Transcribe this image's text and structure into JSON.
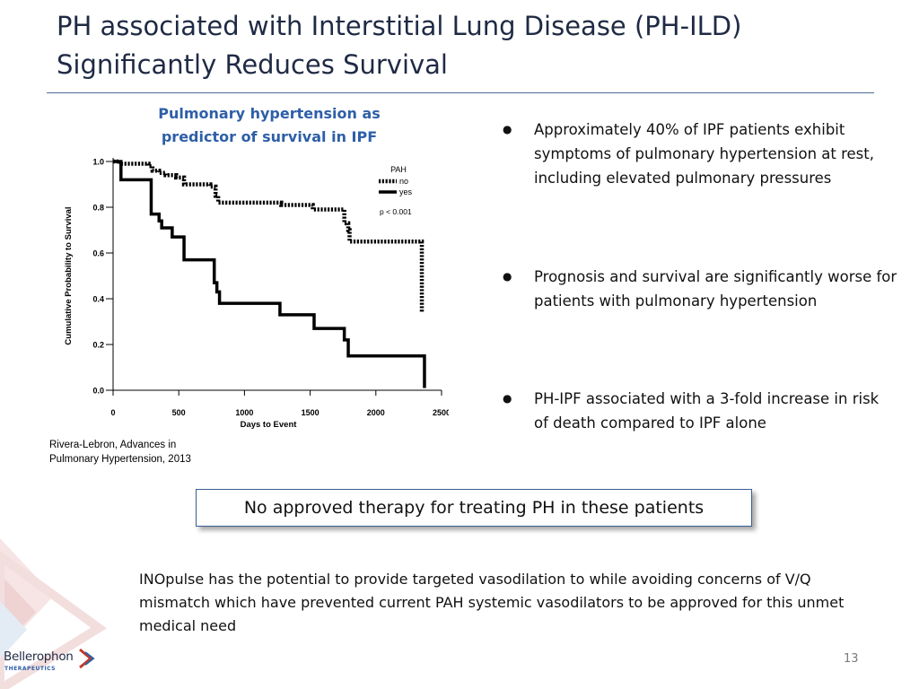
{
  "slide": {
    "title_line1": "PH associated with Interstitial Lung Disease (PH-ILD)",
    "title_line2": "Significantly Reduces Survival",
    "chart_heading_line1": "Pulmonary hypertension as",
    "chart_heading_line2": "predictor of survival in IPF",
    "citation_line1": "Rivera-Lebron, Advances in",
    "citation_line2": "Pulmonary Hypertension, 2013",
    "bullets": [
      "Approximately 40% of IPF patients exhibit symptoms of pulmonary hypertension at rest, including elevated pulmonary pressures",
      "Prognosis and survival are significantly worse for patients with pulmonary hypertension",
      "PH-IPF associated with a 3-fold increase in risk of death compared to IPF alone"
    ],
    "callout": "No approved therapy for treating PH in these patients",
    "bottom_text": "INOpulse has the potential to provide targeted vasodilation to while avoiding concerns of V/Q mismatch which have prevented current PAH systemic vasodilators to be approved for this unmet medical need",
    "page_number": "13"
  },
  "logo": {
    "name": "Bellerophon",
    "subtitle": "THERAPEUTICS"
  },
  "colors": {
    "title": "#1f2a44",
    "chart_heading": "#2e5fa8",
    "rule": "#4e6a92",
    "logo_red": "#c0392b",
    "logo_blue": "#2e5fa8"
  },
  "chart_data": {
    "type": "line",
    "subtype": "kaplan-meier step",
    "xlabel": "Days to Event",
    "ylabel": "Cumulative Probability to Survival",
    "xlim": [
      0,
      2500
    ],
    "ylim": [
      0,
      1.0
    ],
    "x_ticks": [
      "0",
      "500",
      "1000",
      "1500",
      "2000",
      "2500"
    ],
    "y_ticks": [
      "0.0",
      "0.2",
      "0.4",
      "0.6",
      "0.8",
      "1.0"
    ],
    "x_tick_values": [
      0,
      500,
      1000,
      1500,
      2000,
      2500
    ],
    "y_tick_values": [
      0,
      0.2,
      0.4,
      0.6,
      0.8,
      1.0
    ],
    "legend_title": "PAH",
    "legend_placement": "top-right",
    "annotation": "p < 0.001",
    "series": [
      {
        "name": "no",
        "style": "dotted",
        "x": [
          0,
          50,
          270,
          300,
          350,
          400,
          480,
          540,
          740,
          780,
          800,
          1280,
          1520,
          1760,
          1790,
          1800,
          2350,
          2350
        ],
        "y": [
          1.0,
          0.99,
          0.98,
          0.96,
          0.95,
          0.94,
          0.93,
          0.9,
          0.89,
          0.85,
          0.82,
          0.81,
          0.79,
          0.73,
          0.7,
          0.65,
          0.65,
          0.34
        ]
      },
      {
        "name": "yes",
        "style": "solid",
        "x": [
          0,
          60,
          290,
          350,
          370,
          450,
          540,
          770,
          790,
          810,
          1270,
          1530,
          1760,
          1790,
          2370,
          2370
        ],
        "y": [
          1.0,
          0.92,
          0.77,
          0.74,
          0.71,
          0.67,
          0.57,
          0.47,
          0.43,
          0.38,
          0.33,
          0.27,
          0.22,
          0.15,
          0.15,
          0.01
        ]
      }
    ]
  }
}
